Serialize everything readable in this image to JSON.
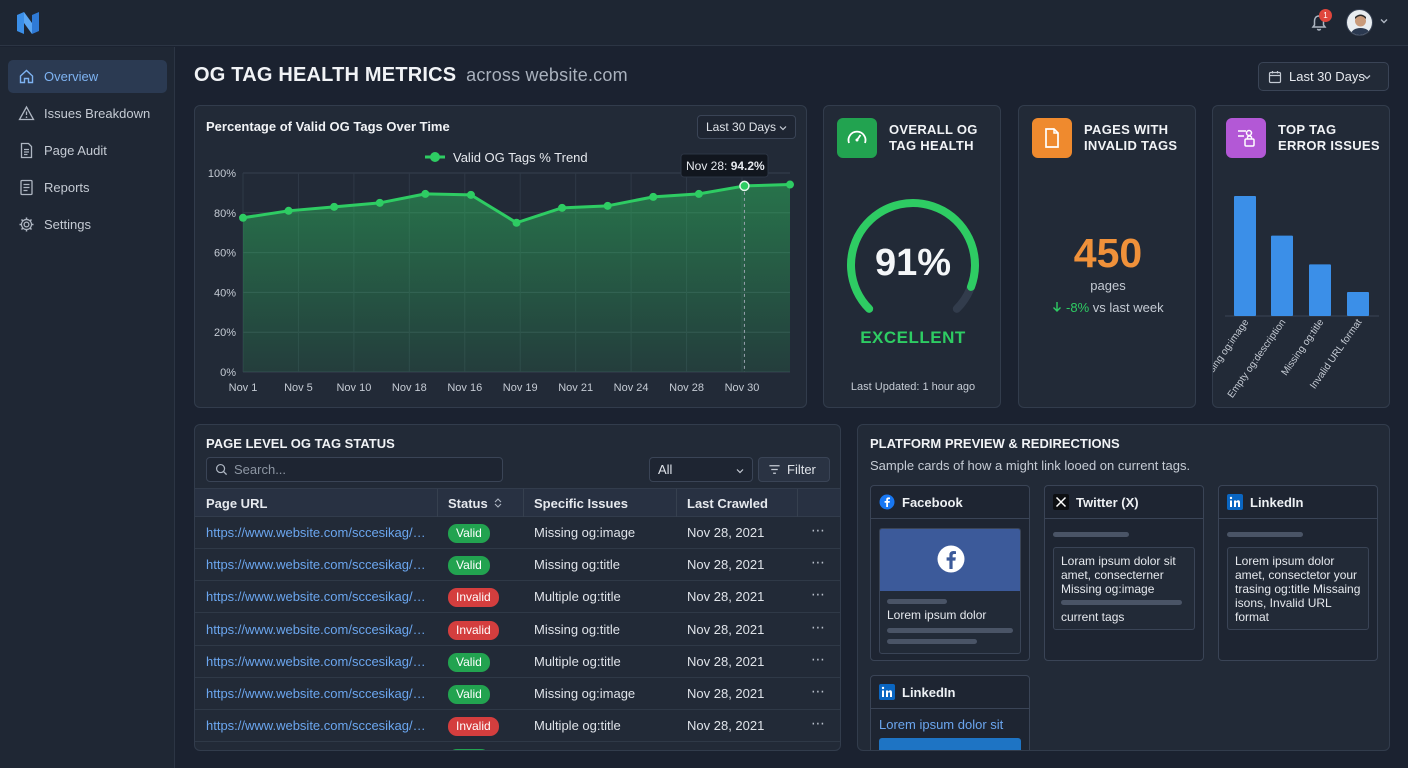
{
  "header": {
    "notification_count": "1"
  },
  "sidebar": {
    "items": [
      {
        "label": "Overview"
      },
      {
        "label": "Issues Breakdown"
      },
      {
        "label": "Page Audit"
      },
      {
        "label": "Reports"
      },
      {
        "label": "Settings"
      }
    ]
  },
  "page": {
    "title": "OG TAG HEALTH METRICS",
    "subtitle": "across website.com",
    "range": "Last 30 Days"
  },
  "trend": {
    "title": "Percentage of Valid OG Tags Over Time",
    "range": "Last 30 Days",
    "tooltip_label": "Nov 28:",
    "tooltip_value": "94.2%"
  },
  "chart_data": [
    {
      "type": "area",
      "title": "Percentage of Valid OG Tags Over Time",
      "legend": [
        "Valid OG Tags % Trend"
      ],
      "y_ticks": [
        "100%",
        "80%",
        "60%",
        "40%",
        "20%",
        "0%"
      ],
      "ylim": [
        0,
        100
      ],
      "x_ticks": [
        "Nov 1",
        "Nov 5",
        "Nov 10",
        "Nov 18",
        "Nov 16",
        "Nov 19",
        "Nov 21",
        "Nov 24",
        "Nov 28",
        "Nov 30"
      ],
      "grid": true,
      "legend_position": "top",
      "series": [
        {
          "name": "Valid OG Tags % Trend",
          "color": "#2ecc63",
          "values": [
            77.5,
            81,
            83,
            85,
            89.5,
            89,
            75,
            82.5,
            83.5,
            88,
            89.5,
            93.5,
            94.2
          ]
        }
      ]
    },
    {
      "type": "bar",
      "title": "TOP TAG ERROR ISSUES",
      "categories": [
        "Missing og:image",
        "Empty og:description",
        "Missing og:title",
        "Invalid URL format"
      ],
      "values": [
        100,
        67,
        43,
        20
      ],
      "color": "#3b8fe8"
    }
  ],
  "health": {
    "title_line1": "OVERALL OG",
    "title_line2": "TAG HEALTH",
    "value": "91%",
    "percent": 91,
    "status": "EXCELLENT",
    "updated": "Last Updated: 1 hour ago"
  },
  "invalid_pages": {
    "title_line1": "PAGES WITH",
    "title_line2": "INVALID TAGS",
    "value": "450",
    "unit": "pages",
    "change": "-8%",
    "change_suffix": "vs last week"
  },
  "top_errors": {
    "title_line1": "TOP TAG",
    "title_line2": "ERROR ISSUES",
    "labels": [
      "Missing og:image",
      "Empty og:description",
      "Missing og:title",
      "Invalid URL format"
    ]
  },
  "table": {
    "title": "PAGE LEVEL OG TAG STATUS",
    "search_placeholder": "Search...",
    "filter_select": "All",
    "filter_button": "Filter",
    "columns": [
      "Page URL",
      "Status",
      "Specific Issues",
      "Last Crawled"
    ],
    "rows": [
      {
        "url": "https://www.website.com/sccesikag/s/...",
        "status": "Valid",
        "issue": "Missing og:image",
        "crawled": "Nov 28, 2021"
      },
      {
        "url": "https://www.website.com/sccesikag/s/...",
        "status": "Valid",
        "issue": "Missing og:title",
        "crawled": "Nov 28, 2021"
      },
      {
        "url": "https://www.website.com/sccesikag/a/...",
        "status": "Invalid",
        "issue": "Multiple og:title",
        "crawled": "Nov 28, 2021"
      },
      {
        "url": "https://www.website.com/sccesikag/s/...",
        "status": "Invalid",
        "issue": "Missing og:title",
        "crawled": "Nov 28, 2021"
      },
      {
        "url": "https://www.website.com/sccesikag/a/...",
        "status": "Valid",
        "issue": "Multiple og:title",
        "crawled": "Nov 28, 2021"
      },
      {
        "url": "https://www.website.com/sccesikag/a/...",
        "status": "Valid",
        "issue": "Missing og:image",
        "crawled": "Nov 28, 2021"
      },
      {
        "url": "https://www.website.com/sccesikag/s/...",
        "status": "Invalid",
        "issue": "Multiple og:title",
        "crawled": "Nov 28, 2021"
      }
    ]
  },
  "platform": {
    "title": "PLATFORM PREVIEW & REDIRECTIONS",
    "subtitle": "Sample cards of how a might link looed on current tags.",
    "facebook": {
      "name": "Facebook",
      "text": "Lorem ipsum dolor"
    },
    "twitter": {
      "name": "Twitter (X)",
      "text": "Loram ipsum dolor sit amet, consecterner Missing og:image",
      "tags": "current tags"
    },
    "linkedin": {
      "name": "LinkedIn",
      "text": "Lorem ipsum dolor amet, consectetor your trasing og:title Missaing isons, Invalid URL format"
    },
    "linkedin2": {
      "name": "LinkedIn",
      "link": "Lorem ipsum dolor sit"
    }
  }
}
